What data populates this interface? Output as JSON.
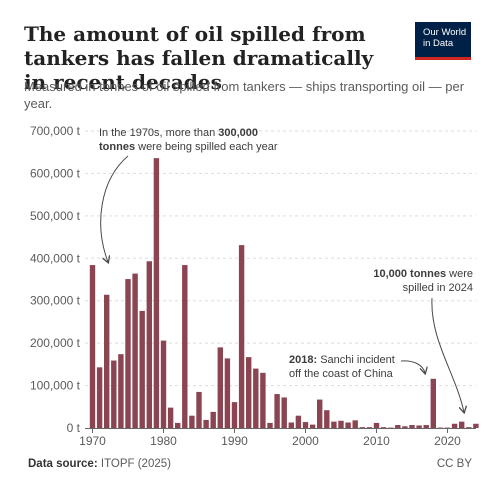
{
  "title": "The amount of oil spilled from tankers has fallen dramatically in recent decades",
  "subtitle": "Measured in tonnes of oil spilled from tankers — ships transporting oil — per year.",
  "logo": {
    "line1": "Our World",
    "line2": "in Data"
  },
  "footer": {
    "source_label": "Data source:",
    "source_value": "ITOPF (2025)",
    "license": "CC BY"
  },
  "colors": {
    "bar": "#8b4451",
    "grid": "#dddddd",
    "axis": "#666666",
    "text": "#5b5b5b",
    "annotation": "#3c3c3c"
  },
  "annotations": [
    {
      "id": "seventies",
      "lines": [
        [
          "In the 1970s, more than ",
          "300,000"
        ],
        [
          "tonnes",
          " were being spilled each year"
        ]
      ]
    },
    {
      "id": "sanchi",
      "lines": [
        [
          "2018:",
          " Sanchi incident"
        ],
        [
          "",
          "off the coast of China"
        ]
      ]
    },
    {
      "id": "latest",
      "lines": [
        [
          "10,000 tonnes",
          " were"
        ],
        [
          "",
          "spilled in 2024"
        ]
      ]
    }
  ],
  "chart_data": {
    "type": "bar",
    "title": "The amount of oil spilled from tankers has fallen dramatically in recent decades",
    "ylim": [
      0,
      700000
    ],
    "y_ticks": [
      0,
      100000,
      200000,
      300000,
      400000,
      500000,
      600000,
      700000
    ],
    "y_tick_labels": [
      "0 t",
      "100,000 t",
      "200,000 t",
      "300,000 t",
      "400,000 t",
      "500,000 t",
      "600,000 t",
      "700,000 t"
    ],
    "x_ticks": [
      1970,
      1980,
      1990,
      2000,
      2010,
      2020
    ],
    "x_range": [
      1970,
      2024
    ],
    "grid": "horizontal dashed",
    "years": [
      1970,
      1971,
      1972,
      1973,
      1974,
      1975,
      1976,
      1977,
      1978,
      1979,
      1980,
      1981,
      1982,
      1983,
      1984,
      1985,
      1986,
      1987,
      1988,
      1989,
      1990,
      1991,
      1992,
      1993,
      1994,
      1995,
      1996,
      1997,
      1998,
      1999,
      2000,
      2001,
      2002,
      2003,
      2004,
      2005,
      2006,
      2007,
      2008,
      2009,
      2010,
      2011,
      2012,
      2013,
      2014,
      2015,
      2016,
      2017,
      2018,
      2019,
      2020,
      2021,
      2022,
      2023,
      2024
    ],
    "values": [
      384000,
      143000,
      314000,
      159000,
      174000,
      351000,
      364000,
      276000,
      393000,
      636000,
      206000,
      48000,
      12000,
      384000,
      29000,
      85000,
      19000,
      38000,
      190000,
      164000,
      61000,
      431000,
      167000,
      140000,
      130000,
      12000,
      80000,
      72000,
      13000,
      29000,
      14000,
      8000,
      67000,
      42000,
      15000,
      17000,
      13000,
      18000,
      2000,
      2000,
      12000,
      2000,
      1000,
      7000,
      4000,
      7000,
      6000,
      7000,
      116000,
      1000,
      1000,
      10000,
      15000,
      2000,
      10000
    ]
  }
}
